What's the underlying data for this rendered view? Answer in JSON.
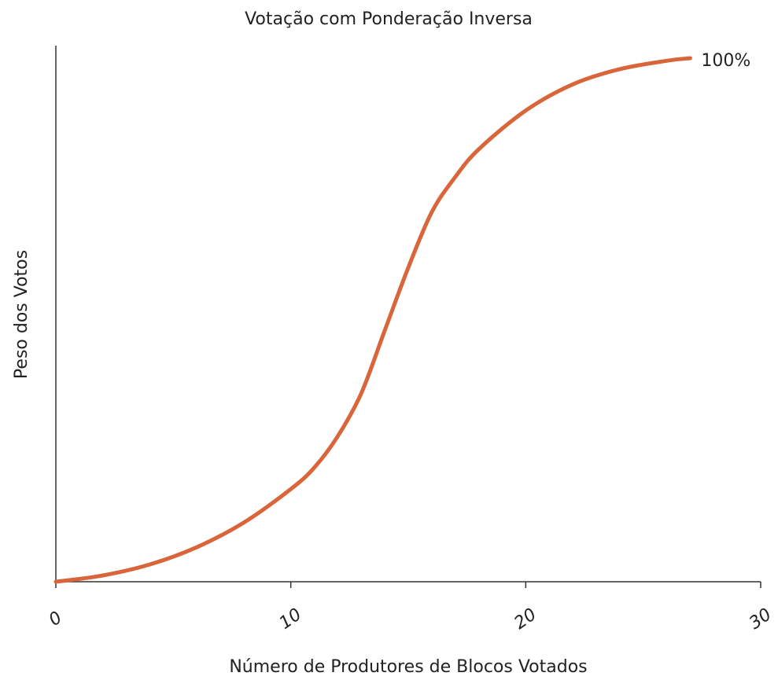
{
  "chart_data": {
    "type": "line",
    "title": "Votação com Ponderação Inversa",
    "xlabel": "Número de Produtores de Blocos Votados",
    "ylabel": "Peso dos Votos",
    "annotation": "100%",
    "x": [
      0,
      2,
      4,
      6,
      8,
      10,
      11,
      12,
      13,
      14,
      15,
      16,
      17,
      18,
      20,
      22,
      24,
      26,
      27
    ],
    "series": [
      {
        "name": "Peso",
        "color": "#d9663b",
        "values": [
          0,
          1.2,
          3.3,
          6.6,
          11.3,
          17.7,
          21.8,
          27.8,
          36,
          48,
          60,
          70.6,
          77.3,
          82.6,
          90,
          95,
          97.9,
          99.5,
          100
        ]
      }
    ],
    "xlim": [
      0,
      30
    ],
    "xticks": [
      0,
      10,
      20,
      30
    ],
    "ylim": [
      0,
      102.4
    ],
    "grid": false
  }
}
